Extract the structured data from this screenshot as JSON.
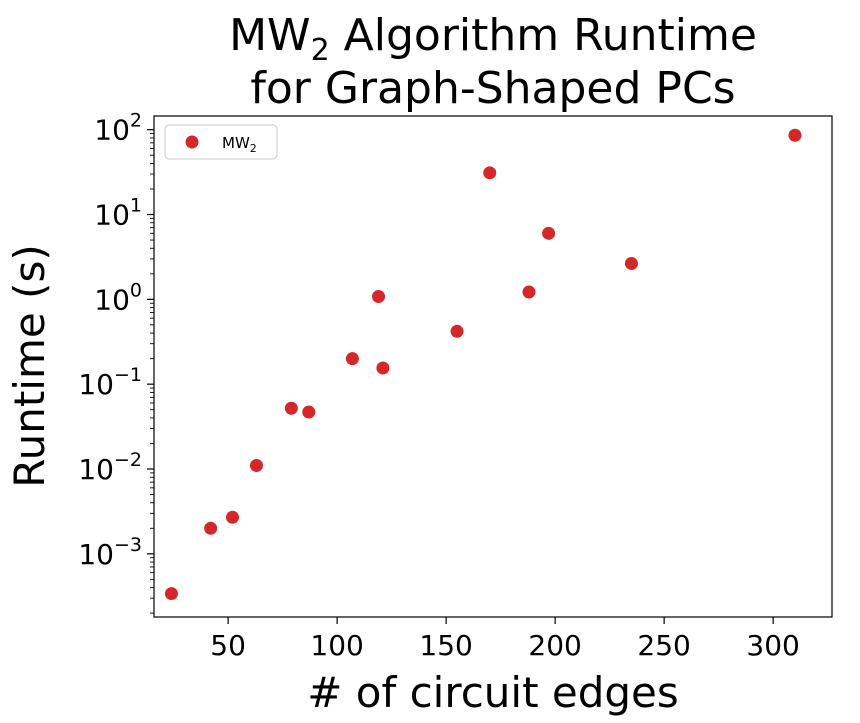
{
  "chart_data": {
    "type": "scatter",
    "title": {
      "line1_prefix": "MW",
      "line1_subscript": "2",
      "line1_suffix": " Algorithm Runtime",
      "line2": "for Graph-Shaped PCs"
    },
    "xlabel": "# of circuit edges",
    "ylabel": "Runtime (s)",
    "x_scale": "linear",
    "y_scale": "log",
    "xlim": [
      16,
      327
    ],
    "ylim": [
      0.00018,
      145
    ],
    "x_ticks": [
      50,
      100,
      150,
      200,
      250,
      300
    ],
    "y_ticks": [
      {
        "value": 0.001,
        "base": "10",
        "exp": "−3"
      },
      {
        "value": 0.01,
        "base": "10",
        "exp": "−2"
      },
      {
        "value": 0.1,
        "base": "10",
        "exp": "−1"
      },
      {
        "value": 1,
        "base": "10",
        "exp": "0"
      },
      {
        "value": 10,
        "base": "10",
        "exp": "1"
      },
      {
        "value": 100,
        "base": "10",
        "exp": "2"
      }
    ],
    "legend": {
      "placement": "top-left",
      "label_prefix": "MW",
      "label_subscript": "2"
    },
    "grid": false,
    "series": [
      {
        "color": "#d62728",
        "points": [
          {
            "x": 24,
            "y": 0.00034
          },
          {
            "x": 42,
            "y": 0.002
          },
          {
            "x": 52,
            "y": 0.0027
          },
          {
            "x": 63,
            "y": 0.011
          },
          {
            "x": 79,
            "y": 0.052
          },
          {
            "x": 87,
            "y": 0.047
          },
          {
            "x": 107,
            "y": 0.2
          },
          {
            "x": 119,
            "y": 1.08
          },
          {
            "x": 121,
            "y": 0.155
          },
          {
            "x": 155,
            "y": 0.42
          },
          {
            "x": 170,
            "y": 31
          },
          {
            "x": 188,
            "y": 1.22
          },
          {
            "x": 197,
            "y": 6.0
          },
          {
            "x": 235,
            "y": 2.65
          },
          {
            "x": 310,
            "y": 86
          }
        ]
      }
    ]
  }
}
